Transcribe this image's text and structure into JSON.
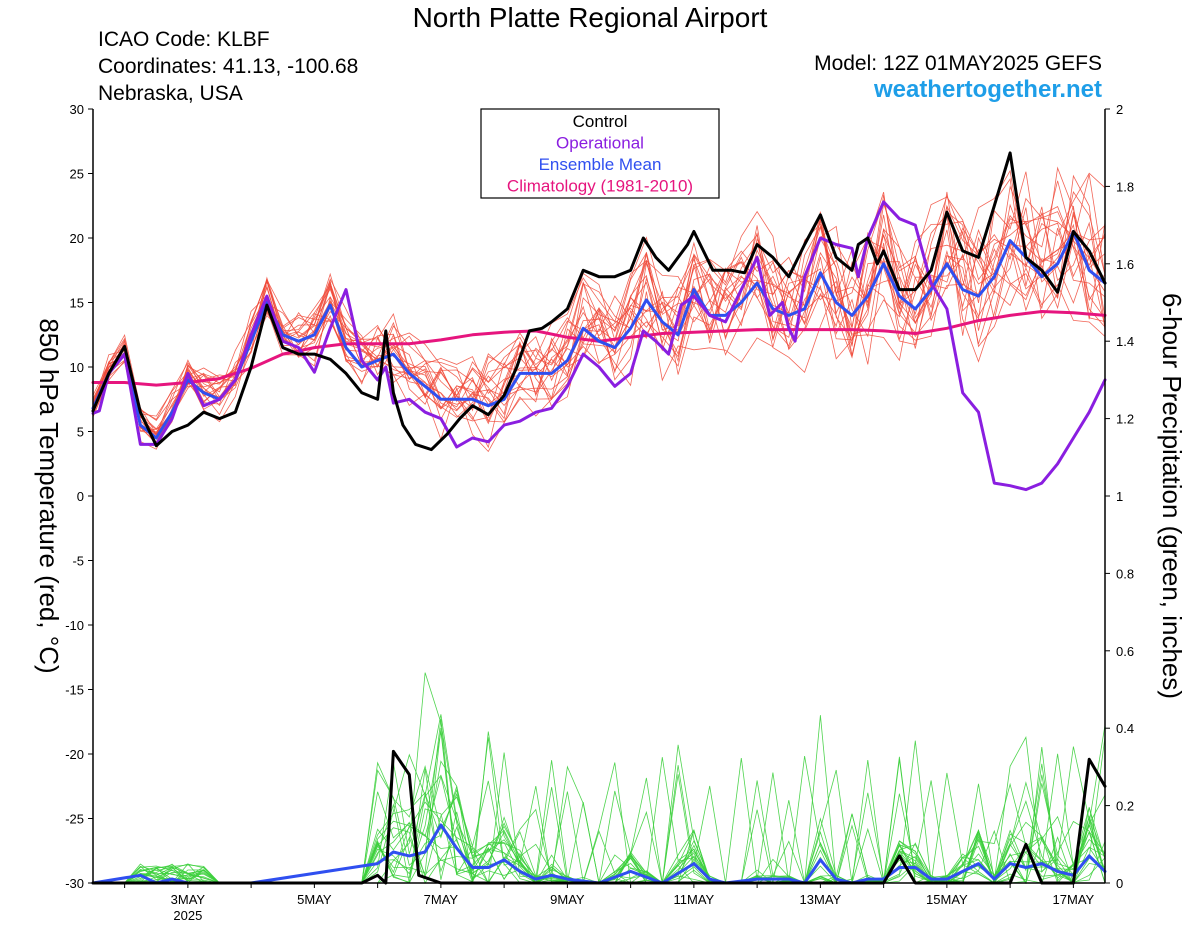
{
  "header": {
    "title": "North Platte Regional Airport",
    "icao": "ICAO Code: KLBF",
    "coordinates": "Coordinates: 41.13, -100.68",
    "region": "Nebraska, USA",
    "model": "Model: 12Z 01MAY2025 GEFS",
    "site": "weathertogether.net"
  },
  "chart_data": {
    "type": "line",
    "ylabel_left": "850 hPa Temperature (red, °C)",
    "ylabel_right": "6-hour Precipitation (green, inches)",
    "ylim_left": [
      -30,
      30
    ],
    "ylim_right": [
      0,
      2
    ],
    "yticks_left": [
      30,
      25,
      20,
      15,
      10,
      5,
      0,
      -5,
      -10,
      -15,
      -20,
      -25,
      -30
    ],
    "yticks_right": [
      "2",
      "1.8",
      "1.6",
      "1.4",
      "1.2",
      "1",
      "0.8",
      "0.6",
      "0.4",
      "0.2",
      "0"
    ],
    "x_range_days": [
      1.5,
      17.5
    ],
    "x_ticks": [
      {
        "label": "3MAY",
        "sublabel": "2025",
        "day": 3
      },
      {
        "label": "5MAY",
        "sublabel": "",
        "day": 5
      },
      {
        "label": "7MAY",
        "sublabel": "",
        "day": 7
      },
      {
        "label": "9MAY",
        "sublabel": "",
        "day": 9
      },
      {
        "label": "11MAY",
        "sublabel": "",
        "day": 11
      },
      {
        "label": "13MAY",
        "sublabel": "",
        "day": 13
      },
      {
        "label": "15MAY",
        "sublabel": "",
        "day": 15
      },
      {
        "label": "17MAY",
        "sublabel": "",
        "day": 17
      }
    ],
    "legend": {
      "placement": "top-center",
      "entries": [
        {
          "label": "Control",
          "color": "#000000"
        },
        {
          "label": "Operational",
          "color": "#8a1ee0"
        },
        {
          "label": "Ensemble Mean",
          "color": "#2f4ff0"
        },
        {
          "label": "Climatology (1981-2010)",
          "color": "#e6157e"
        }
      ]
    },
    "colors": {
      "member_temp": "#f04a3a",
      "member_precip": "#3ccf3c",
      "control": "#000000",
      "operational": "#8a1ee0",
      "mean": "#2f4ff0",
      "climatology": "#e6157e"
    },
    "temperature_series": {
      "control": [
        [
          1.5,
          6.6
        ],
        [
          1.75,
          9.5
        ],
        [
          2.0,
          11.6
        ],
        [
          2.25,
          6.5
        ],
        [
          2.5,
          3.9
        ],
        [
          2.75,
          5.0
        ],
        [
          3.0,
          5.5
        ],
        [
          3.25,
          6.5
        ],
        [
          3.5,
          6.0
        ],
        [
          3.75,
          6.5
        ],
        [
          4.0,
          10.0
        ],
        [
          4.25,
          14.8
        ],
        [
          4.5,
          11.5
        ],
        [
          4.75,
          11.0
        ],
        [
          5.0,
          11.0
        ],
        [
          5.25,
          10.6
        ],
        [
          5.5,
          9.5
        ],
        [
          5.75,
          8.0
        ],
        [
          6.0,
          7.5
        ],
        [
          6.13,
          12.8
        ],
        [
          6.25,
          8.0
        ],
        [
          6.4,
          5.5
        ],
        [
          6.6,
          4.0
        ],
        [
          6.85,
          3.6
        ],
        [
          7.1,
          4.8
        ],
        [
          7.3,
          6.0
        ],
        [
          7.5,
          7.0
        ],
        [
          7.75,
          6.3
        ],
        [
          8.0,
          7.8
        ],
        [
          8.2,
          10.0
        ],
        [
          8.4,
          12.8
        ],
        [
          8.6,
          13.0
        ],
        [
          8.75,
          13.5
        ],
        [
          9.0,
          14.5
        ],
        [
          9.25,
          17.5
        ],
        [
          9.5,
          17.0
        ],
        [
          9.75,
          17.0
        ],
        [
          10.0,
          17.5
        ],
        [
          10.2,
          20.0
        ],
        [
          10.4,
          18.5
        ],
        [
          10.6,
          17.5
        ],
        [
          10.9,
          19.5
        ],
        [
          11.0,
          20.5
        ],
        [
          11.3,
          17.5
        ],
        [
          11.6,
          17.5
        ],
        [
          11.8,
          17.3
        ],
        [
          12.0,
          19.5
        ],
        [
          12.25,
          18.5
        ],
        [
          12.5,
          17.0
        ],
        [
          12.75,
          19.5
        ],
        [
          13.0,
          21.8
        ],
        [
          13.25,
          18.5
        ],
        [
          13.5,
          17.5
        ],
        [
          13.6,
          19.5
        ],
        [
          13.75,
          20.0
        ],
        [
          13.9,
          18.0
        ],
        [
          14.0,
          19.0
        ],
        [
          14.25,
          16.0
        ],
        [
          14.5,
          16.0
        ],
        [
          14.75,
          17.5
        ],
        [
          15.0,
          22.0
        ],
        [
          15.25,
          19.0
        ],
        [
          15.5,
          18.5
        ],
        [
          15.75,
          22.5
        ],
        [
          16.0,
          26.6
        ],
        [
          16.25,
          18.5
        ],
        [
          16.5,
          17.5
        ],
        [
          16.75,
          15.8
        ],
        [
          17.0,
          20.5
        ],
        [
          17.25,
          19.0
        ],
        [
          17.5,
          16.5
        ]
      ],
      "operational": [
        [
          1.5,
          6.4
        ],
        [
          1.6,
          6.6
        ],
        [
          1.75,
          9.5
        ],
        [
          2.0,
          11.0
        ],
        [
          2.25,
          4.0
        ],
        [
          2.5,
          4.0
        ],
        [
          2.75,
          6.0
        ],
        [
          3.0,
          9.5
        ],
        [
          3.25,
          7.0
        ],
        [
          3.5,
          7.5
        ],
        [
          3.75,
          9.0
        ],
        [
          4.0,
          12.5
        ],
        [
          4.25,
          15.5
        ],
        [
          4.5,
          12.0
        ],
        [
          4.75,
          11.5
        ],
        [
          5.0,
          9.6
        ],
        [
          5.25,
          13.0
        ],
        [
          5.5,
          16.0
        ],
        [
          5.75,
          10.5
        ],
        [
          6.0,
          9.0
        ],
        [
          6.13,
          10.0
        ],
        [
          6.25,
          7.2
        ],
        [
          6.5,
          7.5
        ],
        [
          6.75,
          6.5
        ],
        [
          7.0,
          6.0
        ],
        [
          7.25,
          3.8
        ],
        [
          7.5,
          4.5
        ],
        [
          7.75,
          4.2
        ],
        [
          8.0,
          5.5
        ],
        [
          8.25,
          5.8
        ],
        [
          8.5,
          6.5
        ],
        [
          8.75,
          6.8
        ],
        [
          9.0,
          8.5
        ],
        [
          9.25,
          11.0
        ],
        [
          9.5,
          10.0
        ],
        [
          9.75,
          8.5
        ],
        [
          10.0,
          9.5
        ],
        [
          10.2,
          12.8
        ],
        [
          10.4,
          12.0
        ],
        [
          10.6,
          11.0
        ],
        [
          10.8,
          14.8
        ],
        [
          11.0,
          15.5
        ],
        [
          11.25,
          14.0
        ],
        [
          11.5,
          13.5
        ],
        [
          11.75,
          16.0
        ],
        [
          12.0,
          18.5
        ],
        [
          12.2,
          14.0
        ],
        [
          12.4,
          15.0
        ],
        [
          12.5,
          13.0
        ],
        [
          12.6,
          12.0
        ],
        [
          12.75,
          17.0
        ],
        [
          13.0,
          20.0
        ],
        [
          13.25,
          19.5
        ],
        [
          13.5,
          19.2
        ],
        [
          13.6,
          17.0
        ],
        [
          13.75,
          20.0
        ],
        [
          14.0,
          22.8
        ],
        [
          14.25,
          21.5
        ],
        [
          14.5,
          21.0
        ],
        [
          14.75,
          16.5
        ],
        [
          15.0,
          14.5
        ],
        [
          15.25,
          8.0
        ],
        [
          15.5,
          6.5
        ],
        [
          15.75,
          1.0
        ],
        [
          16.0,
          0.8
        ],
        [
          16.25,
          0.5
        ],
        [
          16.5,
          1.0
        ],
        [
          16.75,
          2.5
        ],
        [
          17.0,
          4.5
        ],
        [
          17.25,
          6.5
        ],
        [
          17.5,
          9.0
        ]
      ],
      "mean": [
        [
          1.5,
          6.8
        ],
        [
          1.75,
          9.5
        ],
        [
          2.0,
          11.0
        ],
        [
          2.25,
          5.5
        ],
        [
          2.5,
          4.5
        ],
        [
          2.75,
          6.5
        ],
        [
          3.0,
          9.0
        ],
        [
          3.25,
          8.0
        ],
        [
          3.5,
          7.5
        ],
        [
          3.75,
          9.0
        ],
        [
          4.0,
          12.0
        ],
        [
          4.25,
          15.0
        ],
        [
          4.5,
          12.5
        ],
        [
          4.75,
          12.0
        ],
        [
          5.0,
          12.5
        ],
        [
          5.25,
          14.8
        ],
        [
          5.5,
          11.5
        ],
        [
          5.75,
          10.0
        ],
        [
          6.0,
          10.5
        ],
        [
          6.25,
          11.0
        ],
        [
          6.5,
          9.5
        ],
        [
          6.75,
          8.5
        ],
        [
          7.0,
          7.5
        ],
        [
          7.25,
          7.5
        ],
        [
          7.5,
          7.5
        ],
        [
          7.75,
          7.0
        ],
        [
          8.0,
          7.5
        ],
        [
          8.25,
          9.5
        ],
        [
          8.5,
          9.5
        ],
        [
          8.75,
          9.5
        ],
        [
          9.0,
          10.5
        ],
        [
          9.25,
          13.0
        ],
        [
          9.5,
          12.0
        ],
        [
          9.75,
          11.5
        ],
        [
          10.0,
          13.0
        ],
        [
          10.25,
          15.2
        ],
        [
          10.5,
          13.5
        ],
        [
          10.75,
          12.5
        ],
        [
          11.0,
          16.0
        ],
        [
          11.25,
          14.0
        ],
        [
          11.5,
          14.0
        ],
        [
          11.75,
          15.0
        ],
        [
          12.0,
          16.5
        ],
        [
          12.25,
          14.5
        ],
        [
          12.5,
          14.0
        ],
        [
          12.75,
          14.5
        ],
        [
          13.0,
          17.3
        ],
        [
          13.25,
          15.0
        ],
        [
          13.5,
          14.0
        ],
        [
          13.75,
          15.5
        ],
        [
          14.0,
          18.0
        ],
        [
          14.25,
          15.5
        ],
        [
          14.5,
          14.5
        ],
        [
          14.75,
          16.0
        ],
        [
          15.0,
          18.0
        ],
        [
          15.25,
          16.0
        ],
        [
          15.5,
          15.5
        ],
        [
          15.75,
          17.0
        ],
        [
          16.0,
          19.8
        ],
        [
          16.25,
          18.5
        ],
        [
          16.5,
          17.0
        ],
        [
          16.75,
          18.0
        ],
        [
          17.0,
          20.5
        ],
        [
          17.25,
          17.5
        ],
        [
          17.5,
          16.5
        ]
      ],
      "climatology": [
        [
          1.5,
          8.8
        ],
        [
          2.0,
          8.8
        ],
        [
          2.5,
          8.6
        ],
        [
          3.0,
          8.8
        ],
        [
          3.5,
          9.1
        ],
        [
          4.0,
          9.9
        ],
        [
          4.5,
          11.0
        ],
        [
          5.0,
          11.5
        ],
        [
          5.5,
          11.8
        ],
        [
          6.0,
          11.8
        ],
        [
          6.5,
          11.8
        ],
        [
          7.0,
          12.1
        ],
        [
          7.5,
          12.5
        ],
        [
          8.0,
          12.7
        ],
        [
          8.5,
          12.8
        ],
        [
          9.0,
          12.3
        ],
        [
          9.5,
          12.0
        ],
        [
          10.0,
          12.3
        ],
        [
          10.5,
          12.6
        ],
        [
          11.0,
          12.7
        ],
        [
          11.5,
          12.8
        ],
        [
          12.0,
          12.9
        ],
        [
          12.5,
          12.9
        ],
        [
          13.0,
          12.9
        ],
        [
          13.5,
          12.9
        ],
        [
          14.0,
          12.8
        ],
        [
          14.5,
          12.6
        ],
        [
          15.0,
          13.0
        ],
        [
          15.5,
          13.6
        ],
        [
          16.0,
          14.0
        ],
        [
          16.5,
          14.3
        ],
        [
          17.0,
          14.2
        ],
        [
          17.5,
          14.0
        ]
      ]
    },
    "precipitation_series": {
      "control": [
        [
          1.5,
          0
        ],
        [
          5.75,
          0
        ],
        [
          6.0,
          0.02
        ],
        [
          6.13,
          0
        ],
        [
          6.25,
          0.34
        ],
        [
          6.5,
          0.28
        ],
        [
          6.65,
          0.02
        ],
        [
          7.0,
          0
        ],
        [
          14.0,
          0
        ],
        [
          14.25,
          0.07
        ],
        [
          14.5,
          0
        ],
        [
          16.0,
          0
        ],
        [
          16.25,
          0.1
        ],
        [
          16.5,
          0
        ],
        [
          17.0,
          0
        ],
        [
          17.25,
          0.32
        ],
        [
          17.5,
          0.25
        ]
      ],
      "mean": [
        [
          1.5,
          0
        ],
        [
          2.25,
          0.02
        ],
        [
          2.5,
          0
        ],
        [
          2.75,
          0.01
        ],
        [
          3.0,
          0
        ],
        [
          4.0,
          0
        ],
        [
          6.0,
          0.05
        ],
        [
          6.25,
          0.08
        ],
        [
          6.5,
          0.07
        ],
        [
          6.75,
          0.08
        ],
        [
          7.0,
          0.15
        ],
        [
          7.25,
          0.09
        ],
        [
          7.5,
          0.04
        ],
        [
          7.75,
          0.04
        ],
        [
          8.0,
          0.06
        ],
        [
          8.25,
          0.03
        ],
        [
          8.5,
          0.01
        ],
        [
          8.75,
          0.02
        ],
        [
          9.0,
          0.01
        ],
        [
          9.5,
          0
        ],
        [
          10.0,
          0.03
        ],
        [
          10.5,
          0
        ],
        [
          11.0,
          0.05
        ],
        [
          11.25,
          0.01
        ],
        [
          11.5,
          0
        ],
        [
          12.0,
          0.01
        ],
        [
          12.5,
          0.01
        ],
        [
          12.75,
          0
        ],
        [
          13.0,
          0.06
        ],
        [
          13.25,
          0.01
        ],
        [
          13.5,
          0
        ],
        [
          13.75,
          0.01
        ],
        [
          14.0,
          0.01
        ],
        [
          14.25,
          0.04
        ],
        [
          14.5,
          0.04
        ],
        [
          14.75,
          0.01
        ],
        [
          15.0,
          0.01
        ],
        [
          15.25,
          0.03
        ],
        [
          15.5,
          0.05
        ],
        [
          15.75,
          0.01
        ],
        [
          16.0,
          0.05
        ],
        [
          16.25,
          0.04
        ],
        [
          16.5,
          0.05
        ],
        [
          16.75,
          0.03
        ],
        [
          17.0,
          0.02
        ],
        [
          17.25,
          0.07
        ],
        [
          17.5,
          0.03
        ]
      ]
    }
  }
}
